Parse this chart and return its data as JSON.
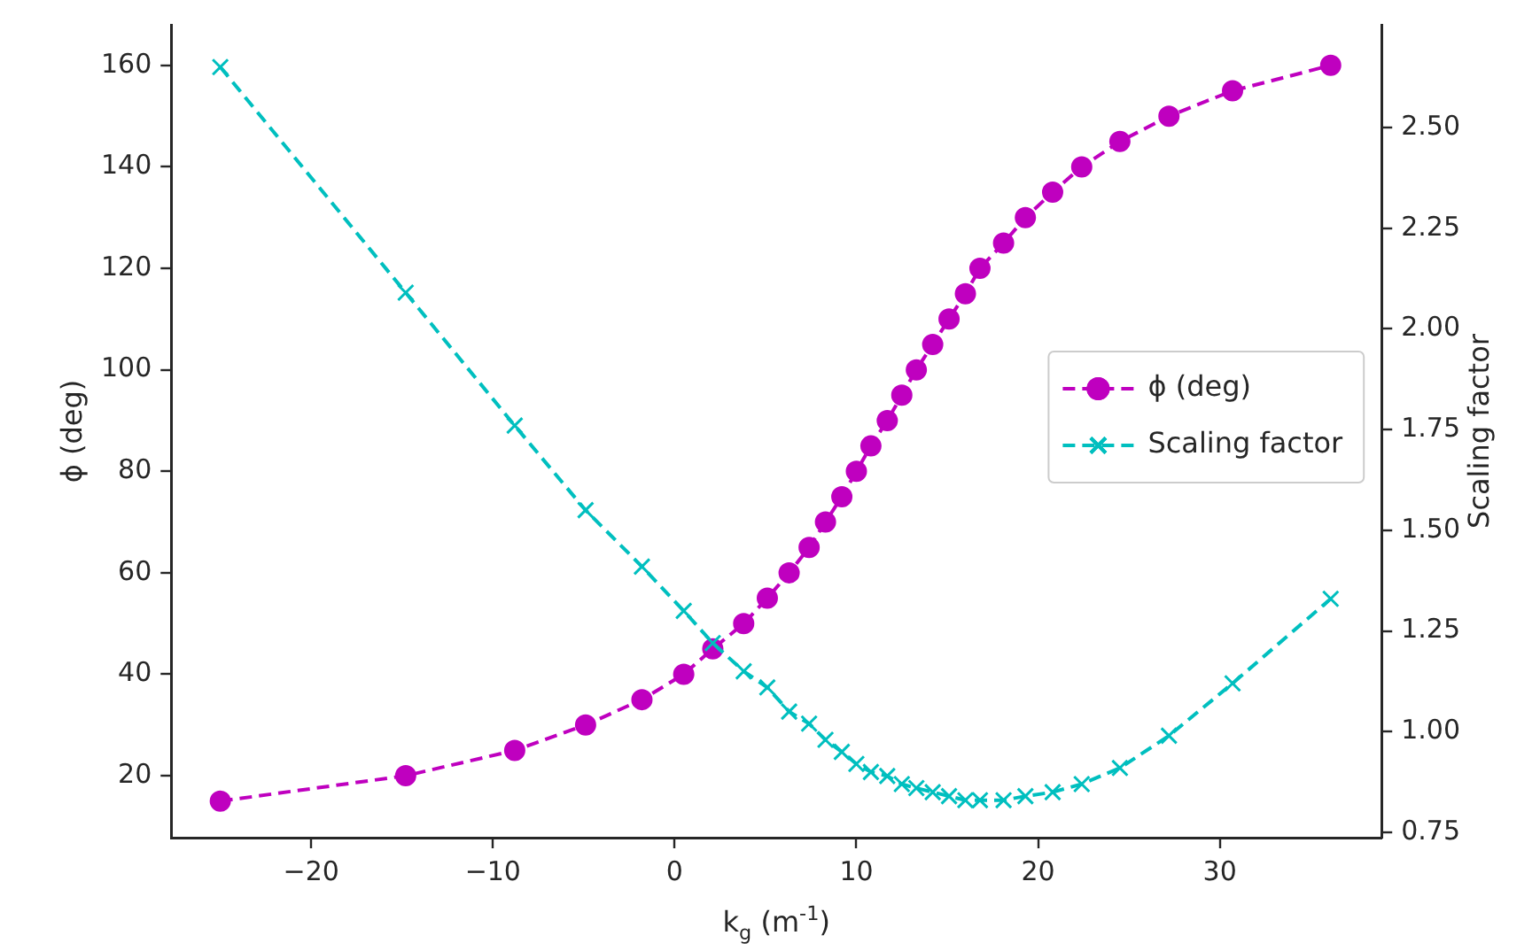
{
  "chart_data": {
    "type": "line",
    "xlabel": "k$_{g}$ (m$^{-1}$)",
    "ylabel": "ϕ (deg)",
    "y2label": "Scaling factor",
    "x": [
      -25,
      -14.8,
      -8.8,
      -4.9,
      -1.8,
      0.5,
      2.1,
      3.8,
      5.1,
      6.3,
      7.4,
      8.3,
      9.2,
      10.0,
      10.8,
      11.7,
      12.5,
      13.3,
      14.2,
      15.1,
      16.0,
      16.8,
      18.1,
      19.3,
      20.8,
      22.4,
      24.5,
      27.2,
      30.7,
      36.1
    ],
    "series": [
      {
        "name": "ϕ (deg)",
        "color": "#bf00bf",
        "marker": "circle",
        "values": [
          15,
          20,
          25,
          30,
          35,
          40,
          45,
          50,
          55,
          60,
          65,
          70,
          75,
          80,
          85,
          90,
          95,
          100,
          105,
          110,
          115,
          120,
          125,
          130,
          135,
          140,
          145,
          150,
          155,
          160
        ]
      },
      {
        "name": "Scaling factor",
        "color": "#00bfbf",
        "marker": "cross",
        "axis": "y2",
        "values": [
          2.65,
          2.09,
          1.76,
          1.55,
          1.41,
          1.3,
          1.22,
          1.15,
          1.11,
          1.05,
          1.02,
          0.98,
          0.95,
          0.92,
          0.9,
          0.89,
          0.87,
          0.86,
          0.85,
          0.84,
          0.83,
          0.83,
          0.83,
          0.84,
          0.85,
          0.87,
          0.91,
          0.99,
          1.12,
          1.33
        ]
      }
    ],
    "line_style": "dashed",
    "grid": false,
    "legend": "right",
    "xlim": [
      -27.7,
      38.9
    ],
    "xticks": [
      {
        "value": -20,
        "label": "−20"
      },
      {
        "value": -10,
        "label": "−10"
      },
      0,
      10,
      20,
      30
    ],
    "ylim": [
      7.8,
      168
    ],
    "yticks": [
      20,
      40,
      60,
      80,
      100,
      120,
      140,
      160
    ],
    "y2lim": [
      0.737,
      2.755
    ],
    "y2ticks": [
      {
        "value": 0.75,
        "label": "0.75"
      },
      {
        "value": 1.0,
        "label": "1.00"
      },
      {
        "value": 1.25,
        "label": "1.25"
      },
      {
        "value": 1.5,
        "label": "1.50"
      },
      {
        "value": 1.75,
        "label": "1.75"
      },
      {
        "value": 2.0,
        "label": "2.00"
      },
      {
        "value": 2.25,
        "label": "2.25"
      },
      {
        "value": 2.5,
        "label": "2.50"
      }
    ]
  }
}
